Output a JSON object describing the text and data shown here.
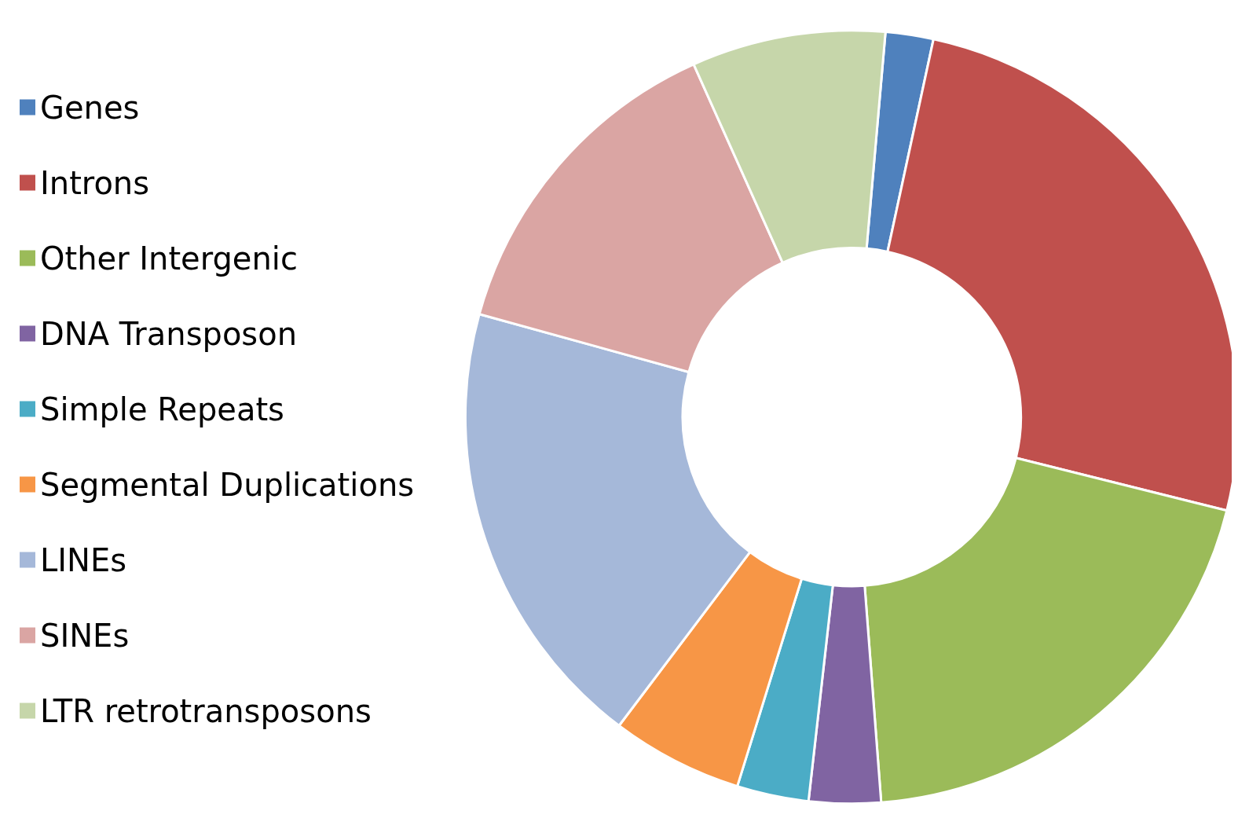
{
  "chart_data": {
    "type": "donut",
    "categories": [
      "Genes",
      "Introns",
      "Other Intergenic",
      "DNA Transposon",
      "Simple Repeats",
      "Segmental Duplications",
      "LINEs",
      "SINEs",
      "LTR retrotransposons"
    ],
    "values": [
      2,
      25.5,
      19.9,
      3,
      3,
      5.5,
      19,
      14,
      8.1
    ],
    "colors": [
      "#4f81bd",
      "#c0504d",
      "#9bbb59",
      "#8064a2",
      "#4bacc6",
      "#f79646",
      "#a5b8d9",
      "#daa5a3",
      "#c6d6aa"
    ],
    "legend": "left"
  }
}
